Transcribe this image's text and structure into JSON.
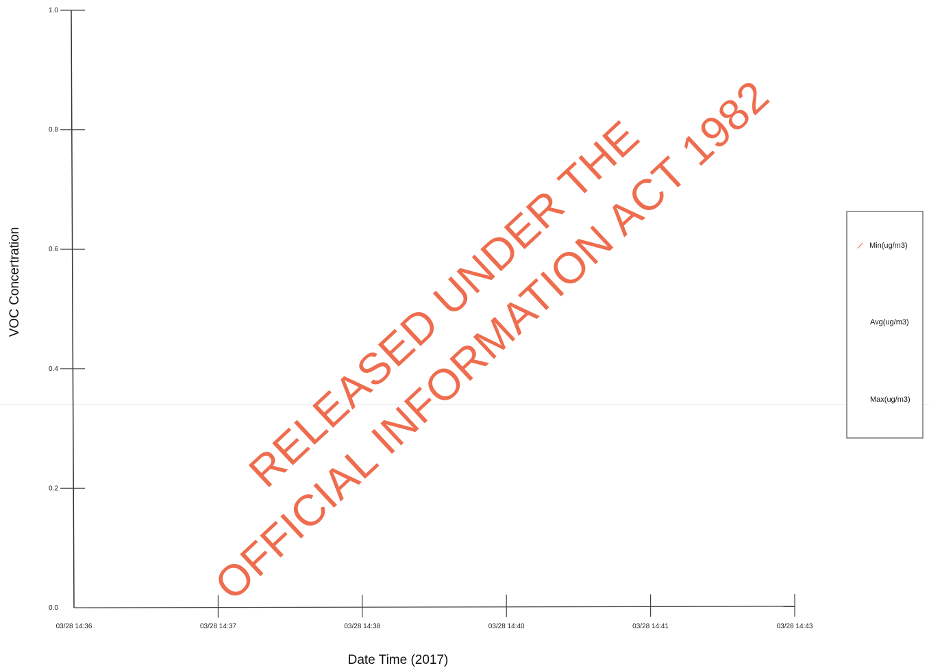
{
  "chart_data": {
    "type": "line",
    "xlabel": "Date Time (2017)",
    "ylabel": "VOC Concertration",
    "ylim": [
      0,
      1
    ],
    "y_ticks": [
      {
        "value": 0.0,
        "label": "0.0"
      },
      {
        "value": 0.2,
        "label": "0.2"
      },
      {
        "value": 0.4,
        "label": "0.4"
      },
      {
        "value": 0.6,
        "label": "0.6"
      },
      {
        "value": 0.8,
        "label": "0.8"
      },
      {
        "value": 1.0,
        "label": "1.0"
      }
    ],
    "x_ticks": [
      "03/28 14:36",
      "03/28 14:37",
      "03/28 14:38",
      "03/28 14:40",
      "03/28 14:41",
      "03/28 14:43"
    ],
    "series": [
      {
        "name": "Min(ug/m3)",
        "values": [],
        "color": "#e8735a"
      },
      {
        "name": "Avg(ug/m3)",
        "values": []
      },
      {
        "name": "Max(ug/m3)",
        "values": []
      }
    ],
    "legend_placement": "right",
    "grid": false
  },
  "watermark": {
    "line1": "RELEASED UNDER THE",
    "line2": "OFFICIAL INFORMATION ACT 1982",
    "color": "#ee6d4e"
  }
}
